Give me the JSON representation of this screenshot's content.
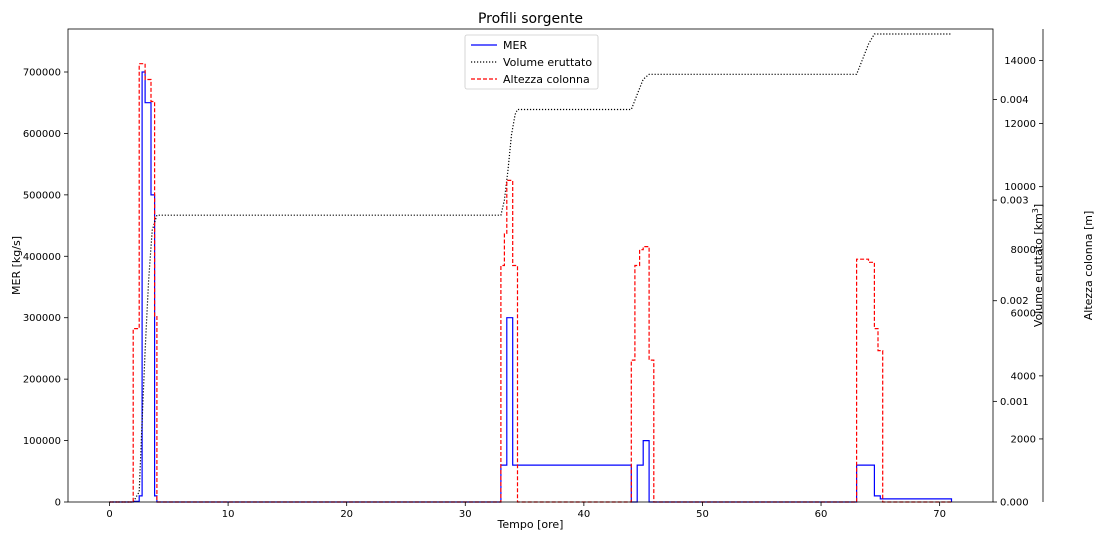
{
  "chart_data": {
    "type": "line",
    "title": "Profili sorgente",
    "xlabel": "Tempo [ore]",
    "ylabel": "MER [kg/s]",
    "y2label": "Volume eruttato [$km^3$]",
    "y2label_display": "Volume eruttato [km",
    "y2label_sup": "3",
    "y2label_end": "]",
    "y3label": "Altezza colonna [m]",
    "xlim": [
      -3.5,
      74.5
    ],
    "ylim": [
      0,
      770000
    ],
    "y2lim": [
      0,
      0.0047
    ],
    "y3lim": [
      0,
      15000
    ],
    "xticks": [
      0,
      10,
      20,
      30,
      40,
      50,
      60,
      70
    ],
    "yticks": [
      0,
      100000,
      200000,
      300000,
      400000,
      500000,
      600000,
      700000
    ],
    "y2ticks": [
      0.0,
      0.001,
      0.002,
      0.003,
      0.004
    ],
    "y2tick_labels": [
      "0.000",
      "0.001",
      "0.002",
      "0.003",
      "0.004"
    ],
    "y3ticks": [
      2000,
      4000,
      6000,
      8000,
      10000,
      12000,
      14000
    ],
    "legend_position": "top-center",
    "grid": false,
    "series": [
      {
        "name": "MER",
        "color": "#0000ff",
        "style": "solid",
        "axis": "left",
        "step": true,
        "x": [
          0,
          2.0,
          2.5,
          2.75,
          3.0,
          3.5,
          3.8,
          4.0,
          33.0,
          33.5,
          34.0,
          44.0,
          44.5,
          45.0,
          45.5,
          63.0,
          64.5,
          65.0,
          71.0
        ],
        "y": [
          0,
          1000,
          10000,
          700000,
          650000,
          500000,
          10000,
          0,
          60000,
          300000,
          60000,
          0,
          60000,
          100000,
          0,
          60000,
          10000,
          5000,
          0
        ]
      },
      {
        "name": "Volume eruttato",
        "color": "#000000",
        "style": "dotted",
        "axis": "right1",
        "step": false,
        "x": [
          0,
          2.0,
          2.5,
          2.75,
          3.0,
          3.3,
          3.6,
          4.0,
          33.0,
          33.3,
          33.6,
          33.9,
          34.2,
          34.4,
          44.0,
          44.5,
          45.0,
          45.5,
          63.0,
          63.5,
          64.0,
          64.5,
          71.0
        ],
        "y": [
          0,
          0,
          0.0001,
          0.0008,
          0.0015,
          0.0022,
          0.0027,
          0.00285,
          0.00285,
          0.003,
          0.0033,
          0.00365,
          0.00385,
          0.0039,
          0.0039,
          0.00405,
          0.0042,
          0.00425,
          0.00425,
          0.0044,
          0.00455,
          0.00465,
          0.00465
        ]
      },
      {
        "name": "Altezza colonna",
        "color": "#ff0000",
        "style": "dashed",
        "axis": "right2",
        "step": true,
        "x": [
          0,
          2.0,
          2.5,
          3.0,
          3.5,
          3.8,
          4.0,
          33.0,
          33.3,
          33.5,
          34.0,
          34.4,
          44.0,
          44.3,
          44.7,
          45.0,
          45.5,
          45.9,
          63.0,
          64.0,
          64.5,
          64.8,
          65.2,
          71.0
        ],
        "y": [
          0,
          5500,
          13900,
          13400,
          12700,
          5900,
          0,
          7500,
          8500,
          10200,
          7500,
          0,
          4500,
          7500,
          8000,
          8100,
          4500,
          0,
          7700,
          7600,
          5500,
          4800,
          0,
          0
        ]
      }
    ]
  }
}
